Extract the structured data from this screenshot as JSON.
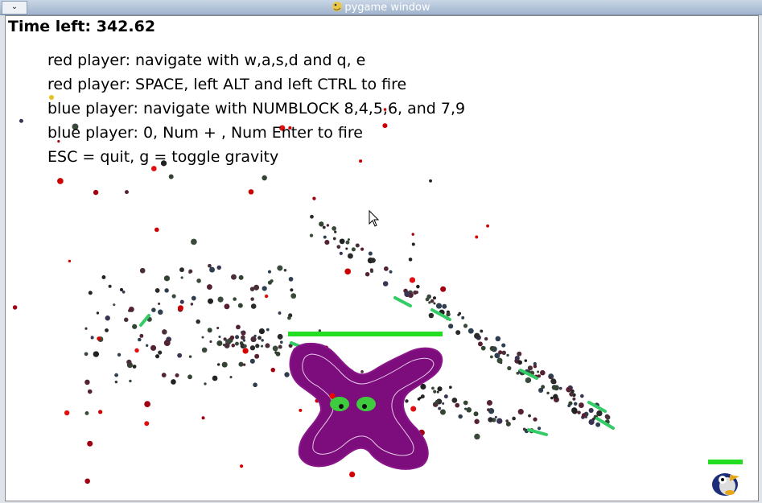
{
  "window": {
    "title": "pygame window",
    "menu_glyph": "⌄"
  },
  "hud": {
    "time_label": "Time left: 342.62",
    "instructions": [
      "red player: navigate with w,a,s,d and q, e",
      "red player: SPACE, left ALT and left CTRL to fire",
      "blue player: navigate with NUMBLOCK 8,4,5,6, and 7,9",
      "blue player: 0, Num + , Num Enter to fire",
      "ESC = quit, g = toggle gravity"
    ]
  },
  "players": {
    "monster": {
      "health_fraction": 1.0,
      "body_color": "#800080",
      "health_color": "#22dd22"
    },
    "blue_player": {
      "health_fraction": 1.0,
      "health_color": "#22dd22",
      "icon": "penguin-icon"
    }
  },
  "colors": {
    "background": "#ffffff",
    "bullet": "#33cc66"
  }
}
